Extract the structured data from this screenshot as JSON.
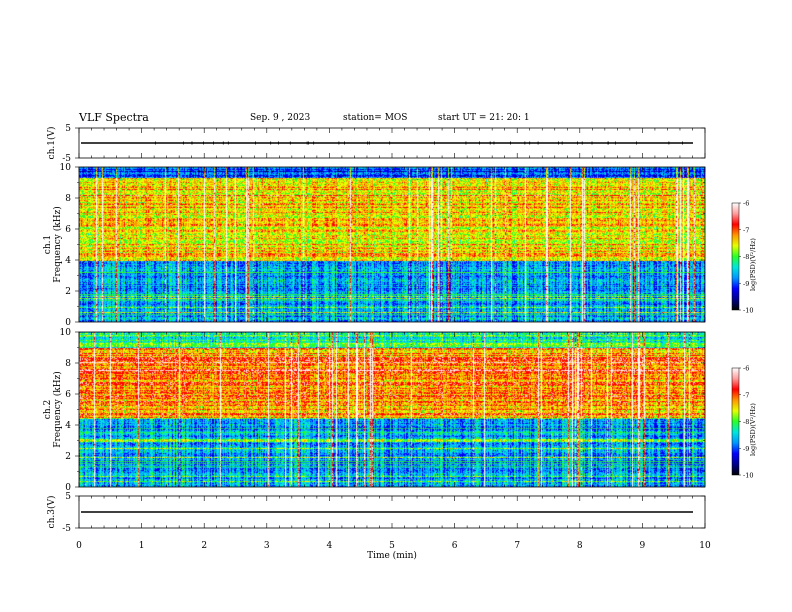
{
  "header": {
    "title": "VLF Spectra",
    "date": "Sep. 9 , 2023",
    "station": "station= MOS",
    "start_ut": "start UT =  21: 20: 1"
  },
  "chart_data": {
    "type": "heatmap",
    "xlabel": "Time (min)",
    "xlim": [
      0,
      10
    ],
    "x_ticks": [
      "0",
      "1",
      "2",
      "3",
      "4",
      "5",
      "6",
      "7",
      "8",
      "9",
      "10"
    ],
    "panels": [
      {
        "id": "ch1-waveform",
        "type": "line",
        "ylabel": "ch.1(V)",
        "ylim": [
          -5,
          5
        ],
        "y_ticks": [
          "5",
          "-5"
        ],
        "series_level": 0
      },
      {
        "id": "ch1-spectrogram",
        "type": "heatmap",
        "ylabel": "ch.1\nFrequency (kHz)",
        "ylim": [
          0,
          10
        ],
        "y_ticks": [
          "0",
          "2",
          "4",
          "6",
          "8",
          "10"
        ],
        "intense_band_khz": [
          4,
          10
        ],
        "quiet_band_khz": [
          0,
          4
        ],
        "colorbar": {
          "label": "log(PSD)(V²/Hz)",
          "ticks": [
            "-6",
            "-7",
            "-8",
            "-9",
            "-10"
          ],
          "range": [
            -10,
            -6
          ]
        }
      },
      {
        "id": "ch2-spectrogram",
        "type": "heatmap",
        "ylabel": "ch.2\nFrequency (kHz)",
        "ylim": [
          0,
          10
        ],
        "y_ticks": [
          "0",
          "2",
          "4",
          "6",
          "8",
          "10"
        ],
        "intense_band_khz": [
          4.5,
          9
        ],
        "quiet_band_khz": [
          0,
          3
        ],
        "colorbar": {
          "label": "log(PSD)(V²/Hz)",
          "ticks": [
            "-6",
            "-7",
            "-8",
            "-9",
            "-10"
          ],
          "range": [
            -10,
            -6
          ]
        }
      },
      {
        "id": "ch3-waveform",
        "type": "line",
        "ylabel": "ch.3(V)",
        "ylim": [
          -5,
          5
        ],
        "y_ticks": [
          "5",
          "-5"
        ],
        "series_level": 0
      }
    ],
    "colormap": [
      "#000000",
      "#00008c",
      "#0000ff",
      "#0096ff",
      "#00e6dc",
      "#28ff28",
      "#e6ff00",
      "#ff9600",
      "#ff0000",
      "#ffc8c8",
      "#ffffff"
    ]
  }
}
